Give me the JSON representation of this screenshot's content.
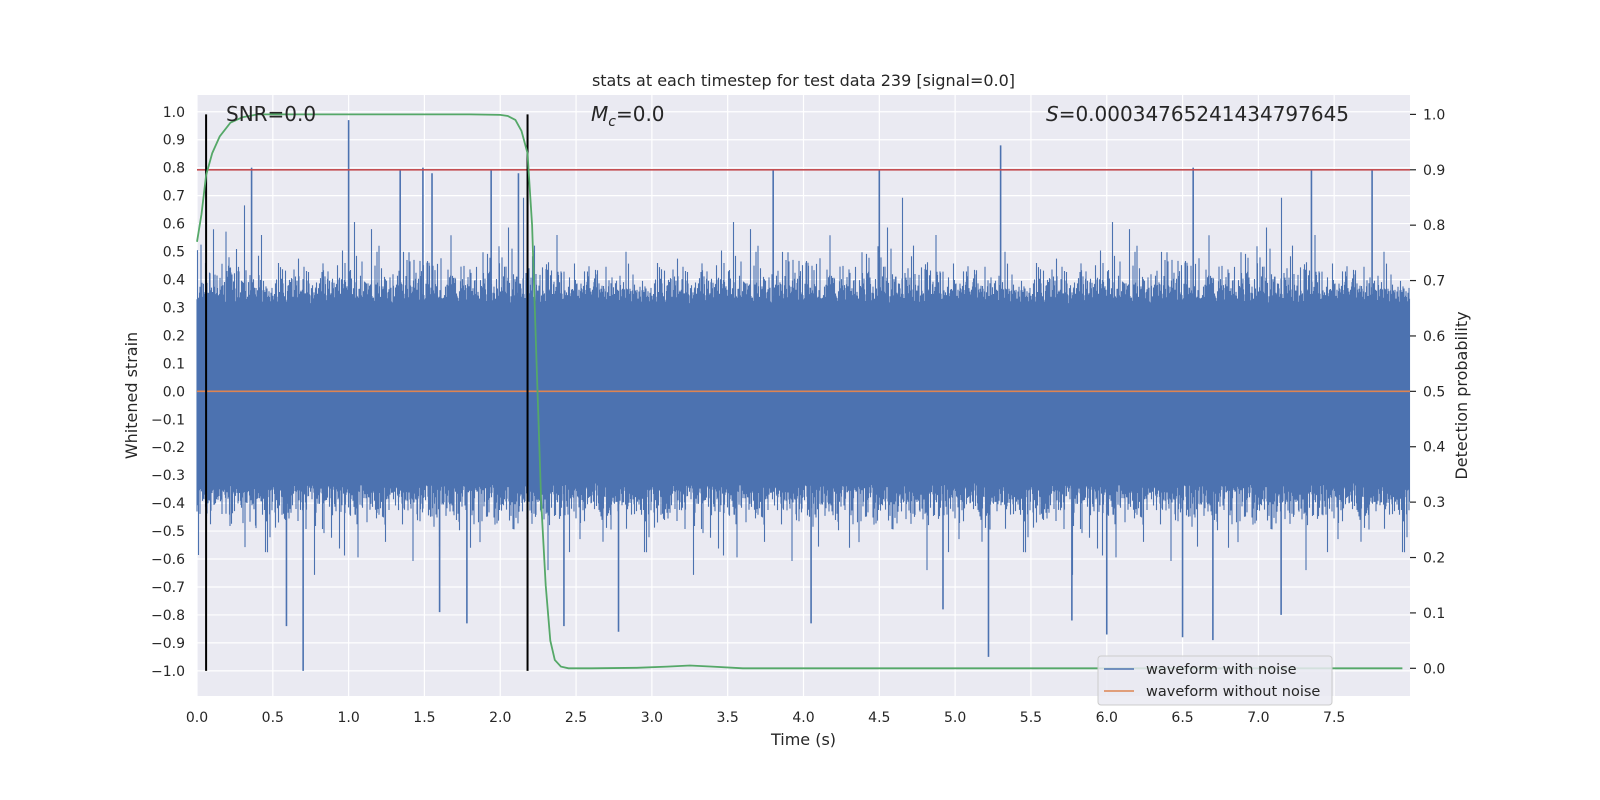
{
  "chart_data": {
    "type": "line",
    "title": "stats at each timestep for test data 239 [signal=0.0]",
    "xlabel": "Time (s)",
    "ylabel": "Whitened strain",
    "y2label": "Detection probability",
    "xlim": [
      0.0,
      8.0
    ],
    "ylim": [
      -1.09,
      1.06
    ],
    "y2lim": [
      -0.05,
      1.035
    ],
    "x_ticks": [
      0.0,
      0.5,
      1.0,
      1.5,
      2.0,
      2.5,
      3.0,
      3.5,
      4.0,
      4.5,
      5.0,
      5.5,
      6.0,
      6.5,
      7.0,
      7.5
    ],
    "x_tick_labels": [
      "0.0",
      "0.5",
      "1.0",
      "1.5",
      "2.0",
      "2.5",
      "3.0",
      "3.5",
      "4.0",
      "4.5",
      "5.0",
      "5.5",
      "6.0",
      "6.5",
      "7.0",
      "7.5"
    ],
    "y_ticks": [
      -1.0,
      -0.9,
      -0.8,
      -0.7,
      -0.6,
      -0.5,
      -0.4,
      -0.3,
      -0.2,
      -0.1,
      0.0,
      0.1,
      0.2,
      0.3,
      0.4,
      0.5,
      0.6,
      0.7,
      0.8,
      0.9,
      1.0
    ],
    "y_tick_labels": [
      "−1.0",
      "−0.9",
      "−0.8",
      "−0.7",
      "−0.6",
      "−0.5",
      "−0.4",
      "−0.3",
      "−0.2",
      "−0.1",
      "0.0",
      "0.1",
      "0.2",
      "0.3",
      "0.4",
      "0.5",
      "0.6",
      "0.7",
      "0.8",
      "0.9",
      "1.0"
    ],
    "y2_ticks": [
      0.0,
      0.1,
      0.2,
      0.3,
      0.4,
      0.5,
      0.6,
      0.7,
      0.8,
      0.9,
      1.0
    ],
    "y2_tick_labels": [
      "0.0",
      "0.1",
      "0.2",
      "0.3",
      "0.4",
      "0.5",
      "0.6",
      "0.7",
      "0.8",
      "0.9",
      "1.0"
    ],
    "annotations": {
      "snr": "SNR=0.0",
      "mc_symbol": "M",
      "mc_subscript": "c",
      "mc_value": "=0.0",
      "s_symbol": "S",
      "s_value": "=0.00034765241434797645"
    },
    "vlines": [
      0.06,
      2.18
    ],
    "threshold": {
      "value": 0.9,
      "axis": "right"
    },
    "legend": {
      "position": "lower-right",
      "entries": [
        {
          "label": "waveform with noise",
          "color": "#4c72b0"
        },
        {
          "label": "waveform without noise",
          "color": "#dd8452"
        }
      ]
    },
    "series": [
      {
        "name": "waveform with noise",
        "axis": "left",
        "color": "#4c72b0",
        "style": "dense-noise",
        "x_range": [
          0.0,
          8.0
        ],
        "typical_envelope": [
          -0.4,
          0.38
        ],
        "peaks": [
          [
            0.36,
            0.8
          ],
          [
            1.0,
            0.97
          ],
          [
            1.34,
            0.79
          ],
          [
            1.49,
            0.8
          ],
          [
            1.55,
            0.78
          ],
          [
            1.94,
            0.79
          ],
          [
            2.12,
            0.78
          ],
          [
            3.8,
            0.79
          ],
          [
            4.5,
            0.79
          ],
          [
            5.3,
            0.88
          ],
          [
            6.57,
            0.8
          ],
          [
            7.35,
            0.79
          ],
          [
            7.75,
            0.79
          ],
          [
            0.59,
            -0.84
          ],
          [
            0.7,
            -1.0
          ],
          [
            1.6,
            -0.79
          ],
          [
            1.78,
            -0.83
          ],
          [
            2.42,
            -0.84
          ],
          [
            2.78,
            -0.86
          ],
          [
            4.05,
            -0.83
          ],
          [
            4.92,
            -0.78
          ],
          [
            5.22,
            -0.95
          ],
          [
            5.77,
            -0.82
          ],
          [
            6.0,
            -0.87
          ],
          [
            6.5,
            -0.88
          ],
          [
            6.7,
            -0.89
          ],
          [
            7.15,
            -0.8
          ]
        ]
      },
      {
        "name": "waveform without noise",
        "axis": "left",
        "color": "#dd8452",
        "x": [
          0.0,
          8.0
        ],
        "y": [
          0.0,
          0.0
        ]
      },
      {
        "name": "detection probability",
        "axis": "right",
        "color": "#55a868",
        "x": [
          0.0,
          0.03,
          0.06,
          0.1,
          0.15,
          0.22,
          0.3,
          0.4,
          0.5,
          1.0,
          1.5,
          1.8,
          2.0,
          2.05,
          2.1,
          2.14,
          2.18,
          2.21,
          2.24,
          2.27,
          2.3,
          2.33,
          2.36,
          2.4,
          2.45,
          2.6,
          2.9,
          3.1,
          3.25,
          3.4,
          3.6,
          4.0,
          5.0,
          6.0,
          7.0,
          7.95
        ],
        "y": [
          0.77,
          0.82,
          0.89,
          0.93,
          0.96,
          0.985,
          0.995,
          1.0,
          1.0,
          1.0,
          1.0,
          1.0,
          0.999,
          0.997,
          0.99,
          0.97,
          0.93,
          0.8,
          0.55,
          0.3,
          0.15,
          0.05,
          0.015,
          0.003,
          0.0,
          0.0,
          0.001,
          0.003,
          0.005,
          0.003,
          0.0,
          0.0,
          0.0,
          0.0,
          0.0,
          0.0
        ]
      }
    ]
  }
}
